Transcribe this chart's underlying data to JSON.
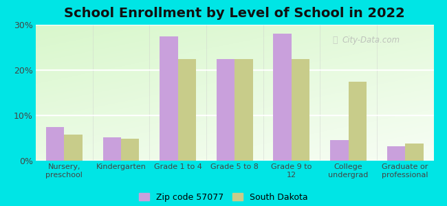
{
  "title": "School Enrollment by Level of School in 2022",
  "categories": [
    "Nursery,\npreschool",
    "Kindergarten",
    "Grade 1 to 4",
    "Grade 5 to 8",
    "Grade 9 to\n12",
    "College\nundergrad",
    "Graduate or\nprofessional"
  ],
  "zip_values": [
    7.5,
    5.2,
    27.5,
    22.5,
    28.0,
    4.5,
    3.2
  ],
  "sd_values": [
    5.8,
    4.8,
    22.5,
    22.5,
    22.5,
    17.5,
    3.8
  ],
  "zip_color": "#c9a0dc",
  "sd_color": "#c8cc8a",
  "background_color": "#00e5e5",
  "ylim": [
    0,
    30
  ],
  "yticks": [
    0,
    10,
    20,
    30
  ],
  "ytick_labels": [
    "0%",
    "10%",
    "20%",
    "30%"
  ],
  "legend_zip_label": "Zip code 57077",
  "legend_sd_label": "South Dakota",
  "watermark": "City-Data.com",
  "title_fontsize": 14,
  "label_fontsize": 8,
  "tick_fontsize": 9,
  "bar_width": 0.32
}
